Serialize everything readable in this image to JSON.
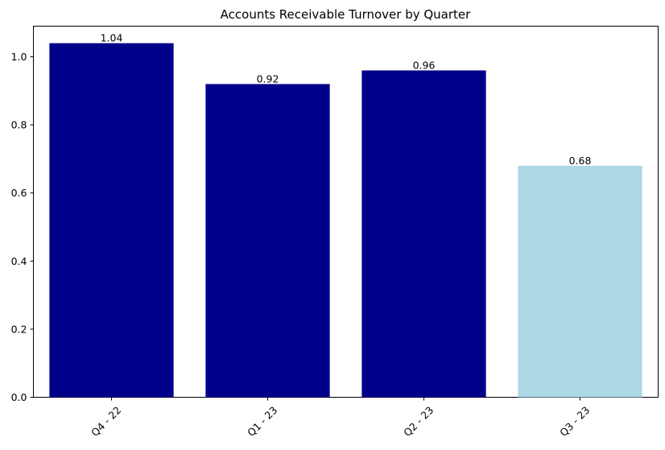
{
  "chart_data": {
    "type": "bar",
    "title": "Accounts Receivable Turnover by Quarter",
    "xlabel": "",
    "ylabel": "",
    "categories": [
      "Q4 - 22",
      "Q1 - 23",
      "Q2 - 23",
      "Q3 - 23"
    ],
    "values": [
      1.04,
      0.92,
      0.96,
      0.68
    ],
    "value_labels": [
      "1.04",
      "0.92",
      "0.96",
      "0.68"
    ],
    "bar_colors": [
      "#00008b",
      "#00008b",
      "#00008b",
      "#add8e6"
    ],
    "ylim": [
      0,
      1.09
    ],
    "yticks": [
      0.0,
      0.2,
      0.4,
      0.6,
      0.8,
      1.0
    ],
    "ytick_labels": [
      "0.0",
      "0.2",
      "0.4",
      "0.6",
      "0.8",
      "1.0"
    ],
    "xtick_rotation": "45 degrees",
    "grid": false,
    "legend": "none"
  }
}
